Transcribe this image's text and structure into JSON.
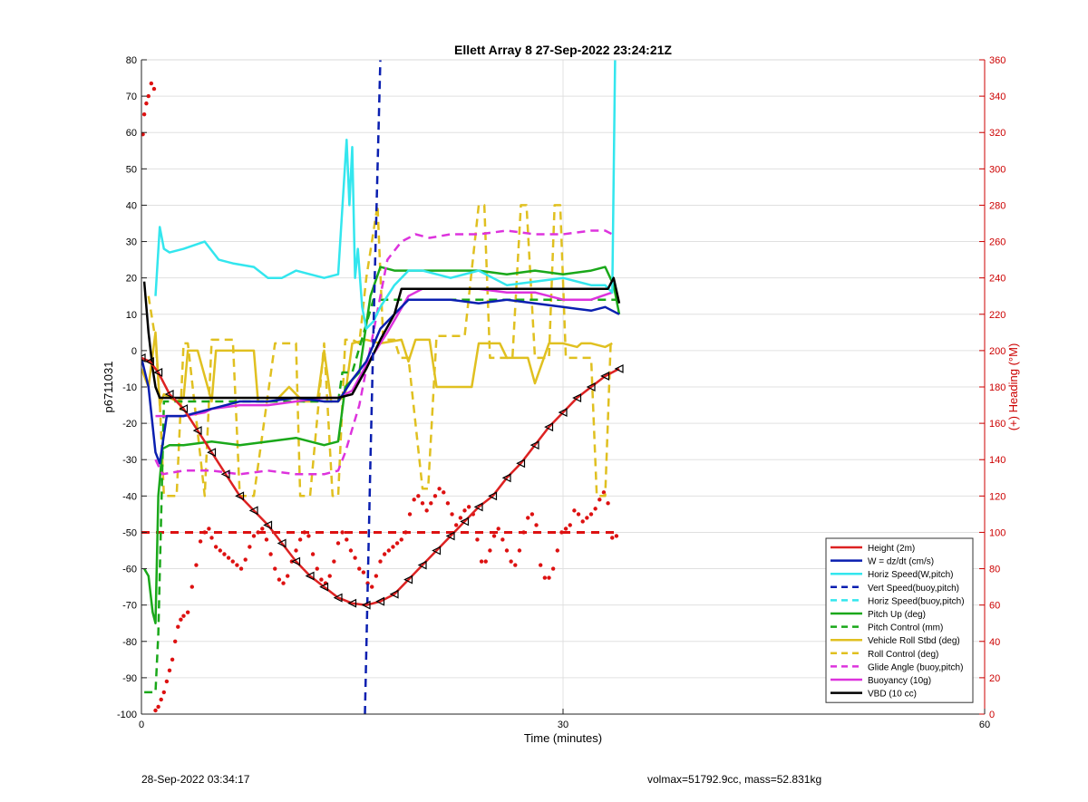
{
  "chart_data": {
    "type": "line",
    "title": "Ellett Array 8 27-Sep-2022 23:24:21Z",
    "xlabel": "Time (minutes)",
    "ylabel": "p6711031",
    "y2label": "(+) Heading (°M)",
    "xlim": [
      0,
      60
    ],
    "ylim": [
      -100,
      80
    ],
    "y2lim": [
      0,
      360
    ],
    "xticks": [
      0,
      30,
      60
    ],
    "yticks": [
      -100,
      -90,
      -80,
      -70,
      -60,
      -50,
      -40,
      -30,
      -20,
      -10,
      0,
      10,
      20,
      30,
      40,
      50,
      60,
      70,
      80
    ],
    "y2ticks": [
      0,
      20,
      40,
      60,
      80,
      100,
      120,
      140,
      160,
      180,
      200,
      220,
      240,
      260,
      280,
      300,
      320,
      340,
      360
    ],
    "grid": true,
    "legend_position": "bottom-right",
    "colors": {
      "axis": "#000000",
      "right_axis": "#cc0000",
      "grid": "#e0e0e0",
      "heading": "#dd1111",
      "heading_ref": "#dd1111"
    },
    "series": [
      {
        "name": "Height (2m)",
        "color": "#dd2222",
        "style": "solid",
        "markers": "triangle",
        "x": [
          0.0,
          0.6,
          1.2,
          2.0,
          3.0,
          4.0,
          5.0,
          6.0,
          7.0,
          8.0,
          9.0,
          10.0,
          11.0,
          12.0,
          13.0,
          14.0,
          15.0,
          16.0,
          17.0,
          18.0,
          19.0,
          20.0,
          21.0,
          22.0,
          23.0,
          24.0,
          25.0,
          26.0,
          27.0,
          28.0,
          29.0,
          30.0,
          31.0,
          32.0,
          33.0,
          34.0
        ],
        "y": [
          -2,
          -3,
          -6,
          -12,
          -16,
          -22,
          -28,
          -34,
          -40,
          -44,
          -48,
          -53,
          -58,
          -62,
          -65,
          -68,
          -69.5,
          -70,
          -69,
          -67,
          -63,
          -59,
          -55,
          -51,
          -47,
          -43,
          -40,
          -35,
          -31,
          -26,
          -21,
          -17,
          -13,
          -10,
          -7,
          -5
        ]
      },
      {
        "name": "W = dz/dt (cm/s)",
        "color": "#0a1fb0",
        "style": "solid",
        "x": [
          0.0,
          0.5,
          1.0,
          1.3,
          1.8,
          3,
          5,
          7,
          9,
          11,
          13,
          14,
          15,
          16,
          17,
          18,
          19,
          20,
          22,
          24,
          26,
          28,
          30,
          32,
          33,
          34
        ],
        "y": [
          -2,
          -10,
          -28,
          -31,
          -18,
          -18,
          -16,
          -14,
          -14,
          -13,
          -14,
          -14,
          -8,
          -3,
          6,
          10,
          14,
          14,
          14,
          13,
          14,
          13,
          12,
          11,
          12,
          10
        ]
      },
      {
        "name": "Horiz Speed(W,pitch)",
        "color": "#33e6ee",
        "style": "solid",
        "x": [
          1.0,
          1.3,
          1.6,
          2.0,
          3,
          4.5,
          5.5,
          6.5,
          8,
          9,
          10,
          11,
          12,
          13,
          14,
          14.6,
          14.8,
          15.0,
          15.2,
          15.4,
          15.7,
          16.0,
          16.5,
          17,
          18,
          19,
          20,
          22,
          24,
          26,
          28,
          30,
          32,
          33,
          33.5,
          33.7
        ],
        "y": [
          15,
          34,
          28,
          27,
          28,
          30,
          25,
          24,
          23,
          20,
          20,
          22,
          21,
          20,
          21,
          58,
          40,
          56,
          20,
          28,
          12,
          6,
          8,
          12,
          18,
          22,
          22,
          20,
          22,
          18,
          19,
          20,
          18,
          18,
          16,
          80
        ]
      },
      {
        "name": "Vert Speed(buoy,pitch)",
        "color": "#0a1fb0",
        "style": "dashed",
        "x": [
          15.9,
          16.3,
          16.6,
          17.0
        ],
        "y": [
          -100,
          -30,
          20,
          80
        ]
      },
      {
        "name": "Horiz Speed(buoy,pitch)",
        "color": "#33e6ee",
        "style": "dashed",
        "x": [],
        "y": []
      },
      {
        "name": "Pitch Up (deg)",
        "color": "#1aa81a",
        "style": "solid",
        "x": [
          0.2,
          0.5,
          0.8,
          1.0,
          1.2,
          1.5,
          2,
          3,
          5,
          7,
          9,
          11,
          13,
          14,
          14.5,
          15.5,
          16.3,
          17,
          18,
          20,
          22,
          24,
          26,
          28,
          30,
          32,
          33,
          33.6,
          34.0
        ],
        "y": [
          -60,
          -62,
          -72,
          -75,
          -40,
          -27,
          -26,
          -26,
          -25,
          -26,
          -25,
          -24,
          -26,
          -25,
          -10,
          -6,
          15,
          23,
          22,
          22,
          22,
          22,
          21,
          22,
          21,
          22,
          23,
          18,
          10
        ]
      },
      {
        "name": "Pitch Control (mm)",
        "color": "#1aa81a",
        "style": "dashed",
        "x": [
          0.2,
          1.0,
          1.2,
          1.6,
          3,
          14,
          14.3,
          15.0,
          16.5,
          17,
          34
        ],
        "y": [
          -94,
          -94,
          -78,
          -14,
          -14,
          -14,
          -6,
          -6,
          14,
          14,
          14
        ]
      },
      {
        "name": "Vehicle Roll Stbd (deg)",
        "color": "#e0c020",
        "style": "solid",
        "x": [
          0.0,
          0.5,
          1.0,
          1.3,
          1.6,
          2.5,
          3.0,
          3.3,
          4.0,
          5.0,
          5.3,
          6.0,
          8.0,
          8.3,
          9.5,
          10.5,
          11.5,
          12.5,
          13.0,
          13.5,
          14.0,
          14.5,
          15,
          16,
          17,
          18.5,
          19.0,
          19.5,
          20.5,
          21.0,
          21.5,
          23.5,
          24.0,
          25.5,
          26.0,
          27.5,
          28.0,
          29.0,
          30.0,
          31.0,
          31.3,
          32.0,
          33.0,
          33.5
        ],
        "y": [
          -5,
          -10,
          5,
          -15,
          -12,
          -14,
          -13,
          0,
          0,
          -14,
          0,
          0,
          0,
          -14,
          -14,
          -10,
          -14,
          -14,
          0,
          -14,
          -14,
          -12,
          2,
          3,
          2,
          3,
          -3,
          3,
          3,
          -10,
          -10,
          -10,
          2,
          2,
          -2,
          -2,
          -9,
          2,
          2,
          1,
          2,
          2,
          1,
          2
        ]
      },
      {
        "name": "Roll Control (deg)",
        "color": "#e0c020",
        "style": "dashed",
        "x": [
          0.5,
          1.0,
          1.3,
          1.6,
          2.5,
          3.0,
          3.3,
          4.5,
          5.0,
          5.2,
          6.5,
          7.0,
          8.0,
          9.5,
          10.0,
          11.0,
          11.3,
          12.0,
          13.0,
          13.6,
          14.0,
          14.5,
          15.0,
          15.5,
          16.0,
          16.8,
          17.2,
          17.5,
          18.0,
          18.4,
          19.0,
          20.0,
          20.4,
          21.0,
          22.0,
          23.0,
          24.0,
          24.4,
          24.8,
          25.2,
          26.0,
          26.4,
          27.0,
          27.4,
          28.0,
          28.4,
          29.0,
          29.4,
          29.8,
          30.2,
          31.0,
          31.4,
          32.0,
          32.4,
          33.0,
          33.4
        ],
        "y": [
          15,
          3,
          -14,
          -40,
          -40,
          2,
          2,
          -40,
          3,
          3,
          3,
          -40,
          -40,
          2,
          2,
          2,
          -40,
          -40,
          2,
          -40,
          -40,
          3,
          3,
          2,
          20,
          40,
          3,
          3,
          3,
          -2,
          -2,
          -38,
          -38,
          4,
          4,
          4,
          40,
          40,
          -2,
          -2,
          -2,
          -2,
          40,
          40,
          -2,
          -2,
          -2,
          40,
          40,
          -2,
          -2,
          -2,
          -2,
          -40,
          -40,
          3
        ]
      },
      {
        "name": "Glide Angle (buoy,pitch)",
        "color": "#dd33dd",
        "style": "dashed",
        "x": [
          1.0,
          1.5,
          3,
          5,
          7,
          9,
          11,
          13,
          14,
          14.5,
          15.5,
          16.5,
          17.5,
          18.5,
          19.5,
          20.5,
          22,
          24,
          26,
          28,
          30,
          32,
          33,
          33.5
        ],
        "y": [
          -30,
          -34,
          -33,
          -33,
          -34,
          -33,
          -34,
          -34,
          -33,
          -28,
          -15,
          5,
          25,
          30,
          32,
          31,
          32,
          32,
          33,
          32,
          32,
          33,
          33,
          32
        ]
      },
      {
        "name": "Buoyancy (10g)",
        "color": "#dd33dd",
        "style": "solid",
        "x": [
          1.0,
          3.0,
          4.5,
          5.0,
          7,
          9,
          11,
          13,
          14,
          15,
          16,
          17.5,
          19.0,
          20.0,
          22,
          24,
          26,
          28,
          30,
          32,
          33.5
        ],
        "y": [
          -18,
          -18,
          -17,
          -16,
          -15,
          -15,
          -14,
          -13,
          -13,
          -11,
          -4,
          5,
          15,
          17,
          17,
          17,
          16,
          16,
          14,
          14,
          16
        ]
      },
      {
        "name": "VBD (10 cc)",
        "color": "#000000",
        "style": "solid",
        "x": [
          0.2,
          0.5,
          0.8,
          1.0,
          1.3,
          2.0,
          5,
          8,
          11,
          14,
          15.0,
          16.0,
          17.0,
          18.0,
          18.5,
          20,
          23,
          26,
          28,
          30,
          32,
          33.2,
          33.6,
          34.0
        ],
        "y": [
          19,
          5,
          -5,
          -10,
          -13,
          -13,
          -13,
          -13,
          -13,
          -13,
          -12,
          -5,
          3,
          10,
          17,
          17,
          17,
          17,
          17,
          17,
          17,
          17,
          20,
          13
        ]
      }
    ],
    "heading": {
      "name": "Heading (°M)",
      "x": [
        0.1,
        0.2,
        0.35,
        0.5,
        0.7,
        0.9,
        1.0,
        1.2,
        1.4,
        1.6,
        1.8,
        2.0,
        2.2,
        2.4,
        2.6,
        2.8,
        3.0,
        3.3,
        3.6,
        3.9,
        4.2,
        4.5,
        4.8,
        5.0,
        5.3,
        5.6,
        5.9,
        6.2,
        6.5,
        6.8,
        7.1,
        7.4,
        7.7,
        8.0,
        8.3,
        8.6,
        8.9,
        9.2,
        9.5,
        9.8,
        10.1,
        10.4,
        10.7,
        11.0,
        11.3,
        11.6,
        11.9,
        12.2,
        12.5,
        12.8,
        13.1,
        13.4,
        13.7,
        14.0,
        14.3,
        14.6,
        14.9,
        15.2,
        15.5,
        15.8,
        16.1,
        16.4,
        16.7,
        17.0,
        17.3,
        17.6,
        17.9,
        18.2,
        18.5,
        18.8,
        19.1,
        19.4,
        19.7,
        20.0,
        20.3,
        20.6,
        20.9,
        21.2,
        21.5,
        21.8,
        22.1,
        22.4,
        22.7,
        23.0,
        23.3,
        23.6,
        23.9,
        24.2,
        24.5,
        24.8,
        25.1,
        25.4,
        25.7,
        26.0,
        26.3,
        26.6,
        26.9,
        27.2,
        27.5,
        27.8,
        28.1,
        28.4,
        28.7,
        29.0,
        29.3,
        29.6,
        29.9,
        30.2,
        30.5,
        30.8,
        31.1,
        31.4,
        31.7,
        32.0,
        32.3,
        32.6,
        32.9,
        33.2,
        33.5,
        33.8
      ],
      "y": [
        319,
        330,
        336,
        340,
        347,
        344,
        2,
        4,
        8,
        12,
        18,
        24,
        30,
        40,
        48,
        52,
        54,
        56,
        70,
        82,
        95,
        100,
        102,
        97,
        92,
        90,
        88,
        86,
        84,
        82,
        80,
        85,
        92,
        98,
        100,
        102,
        96,
        88,
        80,
        74,
        72,
        76,
        84,
        90,
        96,
        100,
        98,
        88,
        80,
        74,
        72,
        76,
        84,
        94,
        100,
        96,
        90,
        86,
        80,
        78,
        72,
        70,
        76,
        84,
        88,
        90,
        92,
        94,
        96,
        100,
        110,
        118,
        120,
        116,
        112,
        116,
        120,
        124,
        122,
        116,
        110,
        104,
        108,
        112,
        114,
        110,
        96,
        84,
        84,
        90,
        98,
        102,
        96,
        90,
        84,
        82,
        90,
        100,
        108,
        110,
        104,
        82,
        75,
        75,
        80,
        90,
        100,
        102,
        104,
        112,
        110,
        106,
        108,
        110,
        113,
        118,
        122,
        116,
        97,
        98
      ],
      "reference_line": 100
    }
  },
  "footer": {
    "left": "28-Sep-2022 03:34:17",
    "right": "volmax=51792.9cc, mass=52.831kg"
  }
}
